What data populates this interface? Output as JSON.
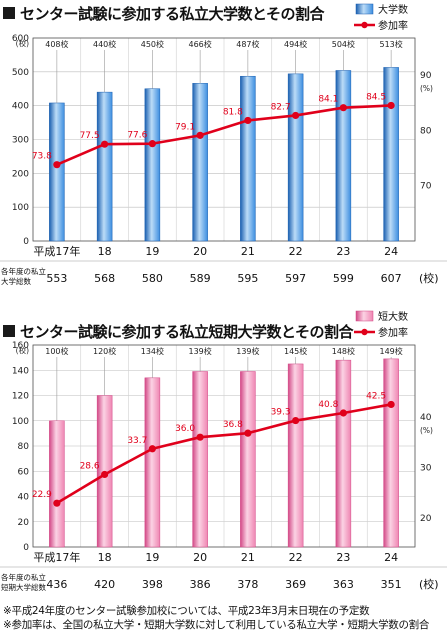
{
  "chart_data": [
    {
      "type": "bar",
      "title": "センター試験に参加する私立大学数とその割合",
      "categories": [
        "平成17年",
        "18",
        "19",
        "20",
        "21",
        "22",
        "23",
        "24"
      ],
      "series": [
        {
          "name": "大学数",
          "type": "bar",
          "axis": "left",
          "values": [
            408,
            440,
            450,
            466,
            487,
            494,
            504,
            513
          ],
          "labels": [
            "408校",
            "440校",
            "450校",
            "466校",
            "487校",
            "494校",
            "504校",
            "513校"
          ],
          "color": "#2f7fd6"
        },
        {
          "name": "参加率",
          "type": "line",
          "axis": "right",
          "values": [
            73.8,
            77.5,
            77.6,
            79.1,
            81.8,
            82.7,
            84.1,
            84.5
          ],
          "labels": [
            "73.8",
            "77.5",
            "77.6",
            "79.1",
            "81.8",
            "82.7",
            "84.1",
            "84.5"
          ],
          "color": "#e0001b"
        }
      ],
      "left_axis": {
        "unit": "(校)",
        "ylim": [
          0,
          600
        ],
        "ticks": [
          "0",
          "100",
          "200",
          "300",
          "400",
          "500",
          "600"
        ]
      },
      "right_axis": {
        "unit": "(%)",
        "ylim": [
          60,
          96.7
        ],
        "ticks": [
          "70",
          "80",
          "90"
        ]
      },
      "grid": true,
      "legend_position": "top-right",
      "totals": {
        "label_line1": "各年度の私立",
        "label_line2": "大学総数",
        "values": [
          "553",
          "568",
          "580",
          "589",
          "595",
          "597",
          "599",
          "607"
        ],
        "unit": "(校)"
      }
    },
    {
      "type": "bar",
      "title": "センター試験に参加する私立短期大学数とその割合",
      "categories": [
        "平成17年",
        "18",
        "19",
        "20",
        "21",
        "22",
        "23",
        "24"
      ],
      "series": [
        {
          "name": "短大数",
          "type": "bar",
          "axis": "left",
          "values": [
            100,
            120,
            134,
            139,
            139,
            145,
            148,
            149
          ],
          "labels": [
            "100校",
            "120校",
            "134校",
            "139校",
            "139校",
            "145校",
            "148校",
            "149校"
          ],
          "color": "#ee79a8"
        },
        {
          "name": "参加率",
          "type": "line",
          "axis": "right",
          "values": [
            22.9,
            28.6,
            33.7,
            36.0,
            36.8,
            39.3,
            40.8,
            42.5
          ],
          "labels": [
            "22.9",
            "28.6",
            "33.7",
            "36.0",
            "36.8",
            "39.3",
            "40.8",
            "42.5"
          ],
          "color": "#e0001b"
        }
      ],
      "left_axis": {
        "unit": "(校)",
        "ylim": [
          0,
          160
        ],
        "ticks": [
          "0",
          "20",
          "40",
          "60",
          "80",
          "100",
          "120",
          "140",
          "160"
        ]
      },
      "right_axis": {
        "unit": "(%)",
        "ylim": [
          14.2,
          54.3
        ],
        "ticks": [
          "20",
          "30",
          "40"
        ]
      },
      "grid": true,
      "legend_position": "top-right",
      "totals": {
        "label_line1": "各年度の私立",
        "label_line2": "短期大学総数",
        "values": [
          "436",
          "420",
          "398",
          "386",
          "378",
          "369",
          "363",
          "351"
        ],
        "unit": "(校)"
      }
    }
  ],
  "notes": [
    "※平成24年度のセンター試験参加校については、平成23年3月末日現在の予定数",
    "※参加率は、全国の私立大学・短期大学数に対して利用している私立大学・短期大学数の割合"
  ]
}
